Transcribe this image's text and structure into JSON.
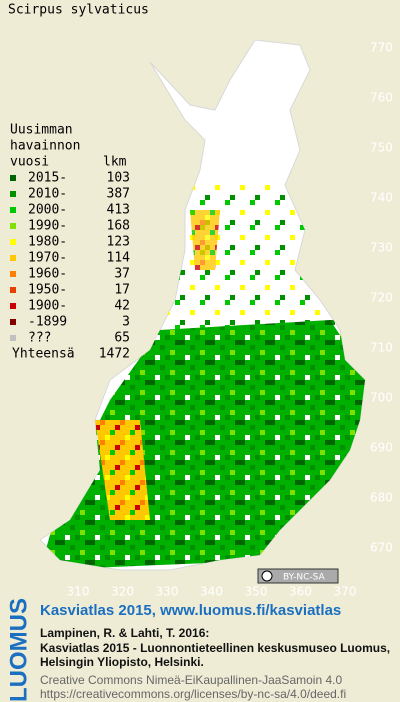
{
  "title": "Scirpus sylvaticus",
  "legend": {
    "heading": [
      "Uusimman",
      "havainnon",
      "vuosi"
    ],
    "count_heading": "lkm",
    "entries": [
      {
        "label": "2015-",
        "count": 103,
        "color": "#006400"
      },
      {
        "label": "2010-",
        "count": 387,
        "color": "#009000"
      },
      {
        "label": "2000-",
        "count": 413,
        "color": "#00c800"
      },
      {
        "label": "1990-",
        "count": 168,
        "color": "#80e000"
      },
      {
        "label": "1980-",
        "count": 123,
        "color": "#ffff00"
      },
      {
        "label": "1970-",
        "count": 114,
        "color": "#ffc800"
      },
      {
        "label": "1960-",
        "count": 37,
        "color": "#ff8000"
      },
      {
        "label": "1950-",
        "count": 17,
        "color": "#e84000"
      },
      {
        "label": "1900-",
        "count": 42,
        "color": "#cc0000"
      },
      {
        "label": "-1899",
        "count": 3,
        "color": "#800000"
      },
      {
        "label": "???",
        "count": 65,
        "color": "#c0c0c0"
      }
    ],
    "total_label": "Yhteensä",
    "total": 1472
  },
  "axes": {
    "yticks": [
      770,
      760,
      750,
      740,
      730,
      720,
      710,
      700,
      690,
      680,
      670
    ],
    "xticks": [
      310,
      320,
      330,
      340,
      350,
      360,
      370
    ]
  },
  "license_badge": "BY-NC-SA",
  "logo": "LUOMUS",
  "footer": {
    "link": "Kasviatlas 2015, www.luomus.fi/kasviatlas",
    "citation": [
      "Lampinen, R. & Lahti, T. 2016:",
      "Kasviatlas 2015 - Luonnontieteellinen keskusmuseo Luomus,",
      "Helsingin Yliopisto, Helsinki."
    ],
    "license": [
      "Creative Commons Nimeä-EiKaupallinen-JaaSamoin 4.0",
      "https://creativecommons.org/licenses/by-nc-sa/4.0/deed.fi"
    ]
  }
}
